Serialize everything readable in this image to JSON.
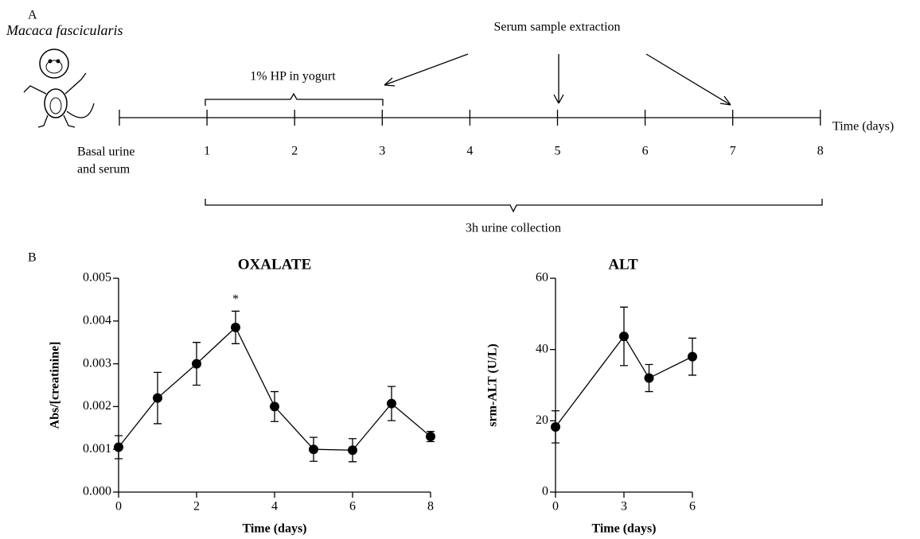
{
  "panel_labels": [
    "A",
    "B"
  ],
  "timeline": {
    "species": "Macaca fascicularis",
    "treatment": "1% HP in yogurt",
    "sampling": "Serum sample extraction",
    "axis_label": "Time (days)",
    "basal": [
      "Basal urine",
      "and serum"
    ],
    "ticks": [
      "1",
      "2",
      "3",
      "4",
      "5",
      "6",
      "7",
      "8"
    ],
    "collection": "3h urine collection"
  },
  "chart_data": [
    {
      "type": "line",
      "title": "OXALATE",
      "x_label": "Time (days)",
      "y_label": "Abs/[creatinine]",
      "x": [
        0,
        1,
        2,
        3,
        4,
        5,
        6,
        7,
        8
      ],
      "values": [
        0.00105,
        0.0022,
        0.003,
        0.00385,
        0.002,
        0.001,
        0.00098,
        0.00207,
        0.0013
      ],
      "errors": [
        0.00027,
        0.0006,
        0.0005,
        0.00038,
        0.00035,
        0.00028,
        0.00027,
        0.0004,
        0.00012
      ],
      "annotations": [
        {
          "x": 3,
          "text": "*"
        }
      ],
      "xlim": [
        0,
        8
      ],
      "xticks": [
        0,
        2,
        4,
        6,
        8
      ],
      "ylim": [
        0,
        0.005
      ],
      "yticks": [
        {
          "value": 0,
          "label": "0.000"
        },
        {
          "value": 0.001,
          "label": "0.001"
        },
        {
          "value": 0.002,
          "label": "0.002"
        },
        {
          "value": 0.003,
          "label": "0.003"
        },
        {
          "value": 0.004,
          "label": "0.004"
        },
        {
          "value": 0.005,
          "label": "0.005"
        }
      ],
      "color": "#000000"
    },
    {
      "type": "line",
      "title": "ALT",
      "x_label": "Time (days)",
      "y_label": "srm-ALT (U/L)",
      "x": [
        0,
        3,
        4.1,
        6
      ],
      "values": [
        18.3,
        43.7,
        32,
        38
      ],
      "errors": [
        4.5,
        8.2,
        3.8,
        5.2
      ],
      "xlim": [
        0,
        6
      ],
      "xticks": [
        0,
        3,
        6
      ],
      "ylim": [
        0,
        60
      ],
      "yticks": [
        0,
        20,
        40,
        60
      ],
      "color": "#000000"
    }
  ]
}
